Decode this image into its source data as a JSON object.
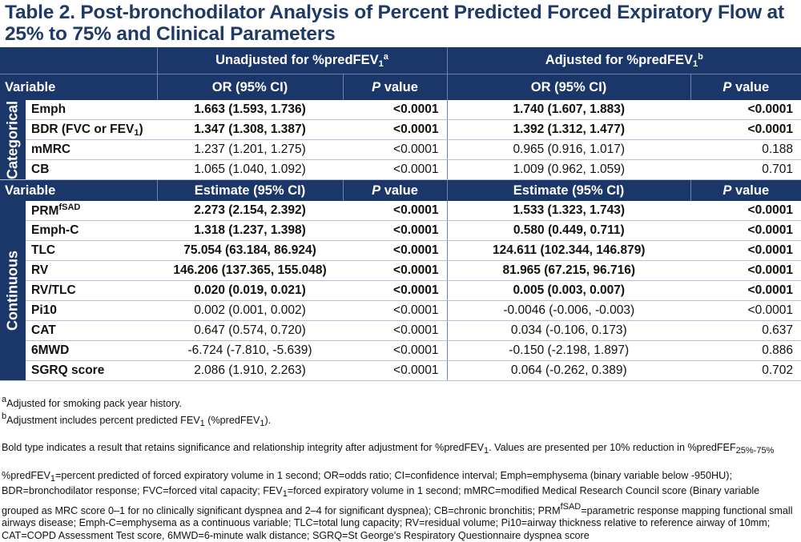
{
  "title": "Table 2. Post-bronchodilator Analysis of Percent Predicted Forced Expiratory Flow at 25% to 75% and Clinical Parameters",
  "header": {
    "unadjusted_prefix": "Unadjusted for %predFEV",
    "unadjusted_sub": "1",
    "unadjusted_sup": "a",
    "adjusted_prefix": "Adjusted for %predFEV",
    "adjusted_sub": "1",
    "adjusted_sup": "b",
    "variable": "Variable",
    "or_ci": "OR (95% CI)",
    "p_italic": "P",
    "p_rest": " value",
    "estimate_ci": "Estimate (95% CI)"
  },
  "groups": {
    "categorical": "Categorical",
    "continuous": "Continuous"
  },
  "categorical_rows": [
    {
      "name": "Emph",
      "u_ci": "1.663 (1.593, 1.736)",
      "u_p": "<0.0001",
      "a_ci": "1.740 (1.607, 1.883)",
      "a_p": "<0.0001",
      "bold": true
    },
    {
      "name": "BDR (FVC or FEV",
      "name_sub": "1",
      "name_after": ")",
      "u_ci": "1.347 (1.308, 1.387)",
      "u_p": "<0.0001",
      "a_ci": "1.392 (1.312, 1.477)",
      "a_p": "<0.0001",
      "bold": true
    },
    {
      "name": "mMRC",
      "u_ci": "1.237 (1.201, 1.275)",
      "u_p": "<0.0001",
      "a_ci": "0.965 (0.916, 1.017)",
      "a_p": "0.188",
      "bold": false
    },
    {
      "name": "CB",
      "u_ci": "1.065 (1.040, 1.092)",
      "u_p": "<0.0001",
      "a_ci": "1.009 (0.962, 1.059)",
      "a_p": "0.701",
      "bold": false
    }
  ],
  "continuous_rows": [
    {
      "name": "PRM",
      "name_sup": "fSAD",
      "u_ci": "2.273 (2.154, 2.392)",
      "u_p": "<0.0001",
      "a_ci": "1.533 (1.323, 1.743)",
      "a_p": "<0.0001",
      "bold": true
    },
    {
      "name": "Emph-C",
      "u_ci": "1.318 (1.237, 1.398)",
      "u_p": "<0.0001",
      "a_ci": "0.580 (0.449, 0.711)",
      "a_p": "<0.0001",
      "bold": true
    },
    {
      "name": "TLC",
      "u_ci": "75.054 (63.184, 86.924)",
      "u_p": "<0.0001",
      "a_ci": "124.611 (102.344, 146.879)",
      "a_p": "<0.0001",
      "bold": true
    },
    {
      "name": "RV",
      "u_ci": "146.206 (137.365, 155.048)",
      "u_p": "<0.0001",
      "a_ci": "81.965 (67.215, 96.716)",
      "a_p": "<0.0001",
      "bold": true
    },
    {
      "name": "RV/TLC",
      "u_ci": "0.020 (0.019, 0.021)",
      "u_p": "<0.0001",
      "a_ci": "0.005 (0.003, 0.007)",
      "a_p": "<0.0001",
      "bold": true
    },
    {
      "name": "Pi10",
      "u_ci": "0.002 (0.001, 0.002)",
      "u_p": "<0.0001",
      "a_ci": "-0.0046 (-0.006, -0.003)",
      "a_p": "<0.0001",
      "bold": false
    },
    {
      "name": "CAT",
      "u_ci": "0.647 (0.574, 0.720)",
      "u_p": "<0.0001",
      "a_ci": "0.034 (-0.106, 0.173)",
      "a_p": "0.637",
      "bold": false
    },
    {
      "name": "6MWD",
      "u_ci": "-6.724 (-7.810, -5.639)",
      "u_p": "<0.0001",
      "a_ci": "-0.150 (-2.198, 1.897)",
      "a_p": "0.886",
      "bold": false
    },
    {
      "name": "SGRQ score",
      "u_ci": "2.086 (1.910, 2.263)",
      "u_p": "<0.0001",
      "a_ci": "0.064 (-0.262, 0.389)",
      "a_p": "0.702",
      "bold": false
    }
  ],
  "footnotes": {
    "a_mark": "a",
    "a_text": "Adjusted for smoking pack year history.",
    "b_mark": "b",
    "b_text_1": "Adjustment includes percent predicted FEV",
    "b_sub_1": "1",
    "b_text_2": " (%predFEV",
    "b_sub_2": "1",
    "b_text_3": ").",
    "bold_note_1": "Bold type indicates a result that retains significance and relationship integrity after adjustment for %predFEV",
    "bold_note_sub": "1",
    "bold_note_2": ". Values are presented per 10% reduction in %predFEF",
    "bold_note_sub2": "25%-75%",
    "abbr_1": "%predFEV",
    "abbr_sub_1": "1",
    "abbr_2": "=percent predicted of forced expiratory volume in 1 second; OR=odds ratio; CI=confidence interval; Emph=emphysema (binary variable below -950HU); BDR=bronchodilator response; FVC=forced vital capacity; FEV",
    "abbr_sub_2": "1",
    "abbr_3": "=forced expiratory volume in 1 second; mMRC=modified Medical Research Council score (Binary variable grouped as MRC score 0–1 for no clinically significant dyspnea and 2–4 for significant dyspnea); CB=chronic bronchitis; PRM",
    "abbr_sup_3": "fSAD",
    "abbr_4": "=parametric response mapping functional small airways disease; Emph-C=emphysema as a continuous variable; TLC=total lung capacity; RV=residual volume; Pi10=airway thickness relative to reference airway of 10mm; CAT=COPD Assessment Test score, 6MWD=6-minute walk distance; SGRQ=St George's Respiratory Questionnaire dyspnea score"
  }
}
